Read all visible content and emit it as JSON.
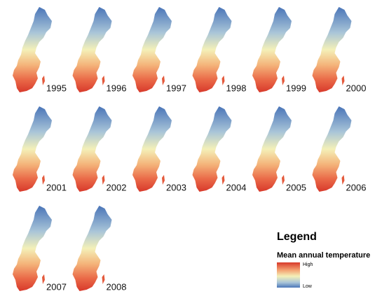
{
  "maps": [
    {
      "year": "1995"
    },
    {
      "year": "1996"
    },
    {
      "year": "1997"
    },
    {
      "year": "1998"
    },
    {
      "year": "1999"
    },
    {
      "year": "2000"
    },
    {
      "year": "2001"
    },
    {
      "year": "2002"
    },
    {
      "year": "2003"
    },
    {
      "year": "2004"
    },
    {
      "year": "2005"
    },
    {
      "year": "2006"
    },
    {
      "year": "2007"
    },
    {
      "year": "2008"
    }
  ],
  "legend": {
    "title": "Legend",
    "subtitle": "Mean annual temperature",
    "high": "High",
    "low": "Low"
  }
}
